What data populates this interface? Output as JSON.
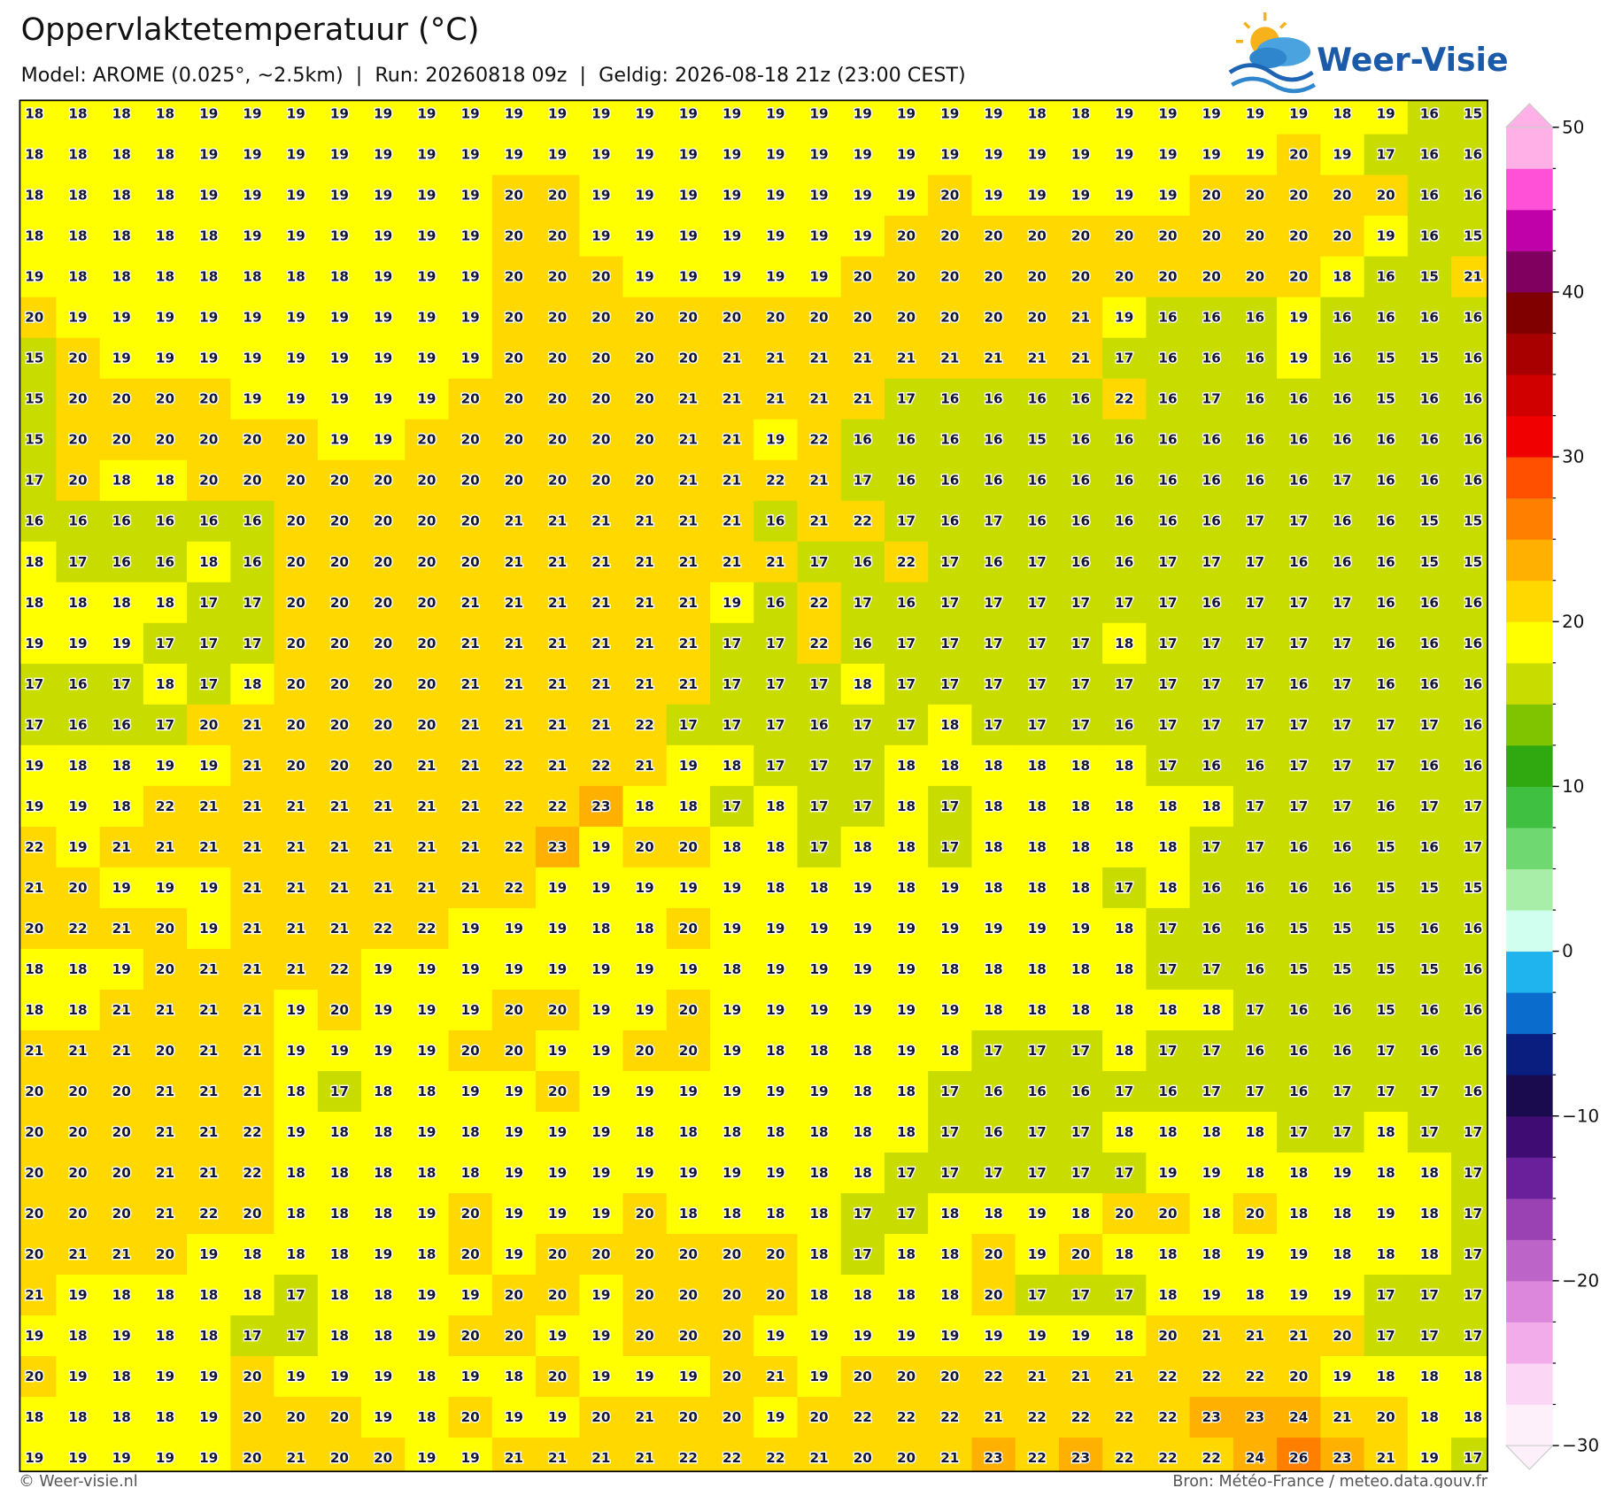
{
  "header": {
    "title": "Oppervlaktetemperatuur (°C)",
    "subtitle": "Model: AROME (0.025°, ~2.5km)  |  Run: 20260818 09z  |  Geldig: 2026-08-18 21z (23:00 CEST)",
    "logo": "Weer-Visie"
  },
  "map": {
    "values": [
      [
        18,
        18,
        18,
        18,
        19,
        19,
        19,
        19,
        19,
        19,
        19,
        19,
        19,
        19,
        19,
        19,
        19,
        19,
        19,
        19,
        19,
        19,
        19,
        18,
        18,
        19,
        19,
        19,
        19,
        19,
        18,
        19,
        16,
        15
      ],
      [
        18,
        18,
        18,
        18,
        19,
        19,
        19,
        19,
        19,
        19,
        19,
        19,
        19,
        19,
        19,
        19,
        19,
        19,
        19,
        19,
        19,
        19,
        19,
        19,
        19,
        19,
        19,
        19,
        19,
        20,
        19,
        17,
        16,
        16
      ],
      [
        18,
        18,
        18,
        18,
        19,
        19,
        19,
        19,
        19,
        19,
        19,
        20,
        20,
        19,
        19,
        19,
        19,
        19,
        19,
        19,
        19,
        20,
        19,
        19,
        19,
        19,
        19,
        20,
        20,
        20,
        20,
        20,
        16,
        16
      ],
      [
        18,
        18,
        18,
        18,
        18,
        19,
        19,
        19,
        19,
        19,
        19,
        20,
        20,
        19,
        19,
        19,
        19,
        19,
        19,
        19,
        20,
        20,
        20,
        20,
        20,
        20,
        20,
        20,
        20,
        20,
        20,
        19,
        16,
        15
      ],
      [
        19,
        18,
        18,
        18,
        18,
        18,
        18,
        18,
        19,
        19,
        19,
        20,
        20,
        20,
        19,
        19,
        19,
        19,
        19,
        20,
        20,
        20,
        20,
        20,
        20,
        20,
        20,
        20,
        20,
        20,
        18,
        16,
        15,
        21
      ],
      [
        20,
        19,
        19,
        19,
        19,
        19,
        19,
        19,
        19,
        19,
        19,
        20,
        20,
        20,
        20,
        20,
        20,
        20,
        20,
        20,
        20,
        20,
        20,
        20,
        21,
        19,
        16,
        16,
        16,
        19,
        16,
        16,
        16,
        16
      ],
      [
        15,
        20,
        19,
        19,
        19,
        19,
        19,
        19,
        19,
        19,
        19,
        20,
        20,
        20,
        20,
        20,
        21,
        21,
        21,
        21,
        21,
        21,
        21,
        21,
        21,
        17,
        16,
        16,
        16,
        19,
        16,
        15,
        15,
        16
      ],
      [
        15,
        20,
        20,
        20,
        20,
        19,
        19,
        19,
        19,
        19,
        20,
        20,
        20,
        20,
        20,
        21,
        21,
        21,
        21,
        21,
        17,
        16,
        16,
        16,
        16,
        22,
        16,
        17,
        16,
        16,
        16,
        15,
        16,
        16
      ],
      [
        15,
        20,
        20,
        20,
        20,
        20,
        20,
        19,
        19,
        20,
        20,
        20,
        20,
        20,
        20,
        21,
        21,
        19,
        22,
        16,
        16,
        16,
        16,
        15,
        16,
        16,
        16,
        16,
        16,
        16,
        16,
        16,
        16,
        16
      ],
      [
        17,
        20,
        18,
        18,
        20,
        20,
        20,
        20,
        20,
        20,
        20,
        20,
        20,
        20,
        20,
        21,
        21,
        22,
        21,
        17,
        16,
        16,
        16,
        16,
        16,
        16,
        16,
        16,
        16,
        16,
        17,
        16,
        16,
        16
      ],
      [
        16,
        16,
        16,
        16,
        16,
        16,
        20,
        20,
        20,
        20,
        20,
        21,
        21,
        21,
        21,
        21,
        21,
        16,
        21,
        22,
        17,
        16,
        17,
        16,
        16,
        16,
        16,
        16,
        17,
        17,
        16,
        16,
        15,
        15
      ],
      [
        18,
        17,
        16,
        16,
        18,
        16,
        20,
        20,
        20,
        20,
        20,
        21,
        21,
        21,
        21,
        21,
        21,
        21,
        17,
        16,
        22,
        17,
        16,
        17,
        16,
        16,
        17,
        17,
        17,
        16,
        16,
        16,
        15,
        15
      ],
      [
        18,
        18,
        18,
        18,
        17,
        17,
        20,
        20,
        20,
        20,
        21,
        21,
        21,
        21,
        21,
        21,
        19,
        16,
        22,
        17,
        16,
        17,
        17,
        17,
        17,
        17,
        17,
        16,
        17,
        17,
        17,
        16,
        16,
        16
      ],
      [
        19,
        19,
        19,
        17,
        17,
        17,
        20,
        20,
        20,
        20,
        21,
        21,
        21,
        21,
        21,
        21,
        17,
        17,
        22,
        16,
        17,
        17,
        17,
        17,
        17,
        18,
        17,
        17,
        17,
        17,
        17,
        16,
        16,
        16
      ],
      [
        17,
        16,
        17,
        18,
        17,
        18,
        20,
        20,
        20,
        20,
        21,
        21,
        21,
        21,
        21,
        21,
        17,
        17,
        17,
        18,
        17,
        17,
        17,
        17,
        17,
        17,
        17,
        17,
        17,
        16,
        17,
        16,
        16,
        16
      ],
      [
        17,
        16,
        16,
        17,
        20,
        21,
        20,
        20,
        20,
        20,
        21,
        21,
        21,
        21,
        22,
        17,
        17,
        17,
        16,
        17,
        17,
        18,
        17,
        17,
        17,
        16,
        17,
        17,
        17,
        17,
        17,
        17,
        17,
        16
      ],
      [
        19,
        18,
        18,
        19,
        19,
        21,
        20,
        20,
        20,
        21,
        21,
        22,
        21,
        22,
        21,
        19,
        18,
        17,
        17,
        17,
        18,
        18,
        18,
        18,
        18,
        18,
        17,
        16,
        16,
        17,
        17,
        17,
        16,
        16
      ],
      [
        19,
        19,
        18,
        22,
        21,
        21,
        21,
        21,
        21,
        21,
        21,
        22,
        22,
        23,
        18,
        18,
        17,
        18,
        17,
        17,
        18,
        17,
        18,
        18,
        18,
        18,
        18,
        18,
        17,
        17,
        17,
        16,
        17,
        17
      ],
      [
        22,
        19,
        21,
        21,
        21,
        21,
        21,
        21,
        21,
        21,
        21,
        22,
        23,
        19,
        20,
        20,
        18,
        18,
        17,
        18,
        18,
        17,
        18,
        18,
        18,
        18,
        18,
        17,
        17,
        16,
        16,
        15,
        16,
        17
      ],
      [
        21,
        20,
        19,
        19,
        19,
        21,
        21,
        21,
        21,
        21,
        21,
        22,
        19,
        19,
        19,
        19,
        19,
        18,
        18,
        19,
        18,
        19,
        18,
        18,
        18,
        17,
        18,
        16,
        16,
        16,
        16,
        15,
        15,
        15
      ],
      [
        20,
        22,
        21,
        20,
        19,
        21,
        21,
        21,
        22,
        22,
        19,
        19,
        19,
        18,
        18,
        20,
        19,
        19,
        19,
        19,
        19,
        19,
        19,
        19,
        19,
        18,
        17,
        16,
        16,
        15,
        15,
        15,
        16,
        16
      ],
      [
        18,
        18,
        19,
        20,
        21,
        21,
        21,
        22,
        19,
        19,
        19,
        19,
        19,
        19,
        19,
        19,
        18,
        19,
        19,
        19,
        19,
        18,
        18,
        18,
        18,
        18,
        17,
        17,
        16,
        15,
        15,
        15,
        15,
        16
      ],
      [
        18,
        18,
        21,
        21,
        21,
        21,
        19,
        20,
        19,
        19,
        19,
        20,
        20,
        19,
        19,
        20,
        19,
        19,
        19,
        19,
        19,
        19,
        18,
        18,
        18,
        18,
        18,
        18,
        17,
        16,
        16,
        15,
        16,
        16
      ],
      [
        21,
        21,
        21,
        20,
        21,
        21,
        19,
        19,
        19,
        19,
        20,
        20,
        19,
        19,
        20,
        20,
        19,
        18,
        18,
        18,
        19,
        18,
        17,
        17,
        17,
        18,
        17,
        17,
        16,
        16,
        16,
        17,
        16,
        16
      ],
      [
        20,
        20,
        20,
        21,
        21,
        21,
        18,
        17,
        18,
        18,
        19,
        19,
        20,
        19,
        19,
        19,
        19,
        19,
        19,
        18,
        18,
        17,
        16,
        16,
        16,
        17,
        16,
        17,
        17,
        16,
        17,
        17,
        17,
        16
      ],
      [
        20,
        20,
        20,
        21,
        21,
        22,
        19,
        18,
        18,
        19,
        18,
        19,
        19,
        19,
        18,
        18,
        18,
        18,
        18,
        18,
        18,
        17,
        16,
        17,
        17,
        18,
        18,
        18,
        18,
        17,
        17,
        18,
        17,
        17
      ],
      [
        20,
        20,
        20,
        21,
        21,
        22,
        18,
        18,
        18,
        18,
        18,
        19,
        19,
        19,
        19,
        19,
        19,
        19,
        18,
        18,
        17,
        17,
        17,
        17,
        17,
        17,
        19,
        19,
        18,
        18,
        19,
        18,
        18,
        17
      ],
      [
        20,
        20,
        20,
        21,
        22,
        20,
        18,
        18,
        18,
        19,
        20,
        19,
        19,
        19,
        20,
        18,
        18,
        18,
        18,
        17,
        17,
        18,
        18,
        19,
        18,
        20,
        20,
        18,
        20,
        18,
        18,
        19,
        18,
        17
      ],
      [
        20,
        21,
        21,
        20,
        19,
        18,
        18,
        18,
        19,
        18,
        20,
        19,
        20,
        20,
        20,
        20,
        20,
        20,
        18,
        17,
        18,
        18,
        20,
        19,
        20,
        18,
        18,
        18,
        19,
        19,
        18,
        18,
        18,
        17
      ],
      [
        21,
        19,
        18,
        18,
        18,
        18,
        17,
        18,
        18,
        19,
        19,
        20,
        20,
        19,
        20,
        20,
        20,
        20,
        18,
        18,
        18,
        18,
        20,
        17,
        17,
        17,
        18,
        19,
        18,
        19,
        19,
        17,
        17,
        17
      ],
      [
        19,
        18,
        19,
        18,
        18,
        17,
        17,
        18,
        18,
        19,
        20,
        20,
        19,
        19,
        20,
        20,
        20,
        19,
        19,
        19,
        19,
        19,
        19,
        19,
        19,
        18,
        20,
        21,
        21,
        21,
        20,
        17,
        17,
        17
      ],
      [
        20,
        19,
        18,
        19,
        19,
        20,
        19,
        19,
        19,
        18,
        19,
        18,
        20,
        19,
        19,
        19,
        20,
        21,
        19,
        20,
        20,
        20,
        22,
        21,
        21,
        21,
        22,
        22,
        22,
        20,
        19,
        18,
        18,
        18
      ],
      [
        18,
        18,
        18,
        18,
        19,
        20,
        20,
        20,
        19,
        18,
        20,
        19,
        19,
        20,
        21,
        20,
        20,
        19,
        20,
        22,
        22,
        22,
        21,
        22,
        22,
        22,
        22,
        23,
        23,
        24,
        21,
        20,
        18,
        18
      ],
      [
        19,
        19,
        19,
        19,
        19,
        20,
        21,
        20,
        20,
        19,
        19,
        21,
        21,
        21,
        21,
        22,
        22,
        22,
        21,
        20,
        20,
        21,
        23,
        22,
        23,
        22,
        22,
        22,
        24,
        26,
        23,
        21,
        19,
        17
      ]
    ]
  },
  "colorbar": {
    "lim": [
      -30,
      50
    ],
    "ticks": [
      50,
      40,
      30,
      20,
      10,
      0,
      {
        "value": -10,
        "label": "−10"
      },
      {
        "value": -20,
        "label": "−20"
      },
      {
        "value": -30,
        "label": "−30"
      }
    ],
    "colors": [
      "#fef0fb",
      "#fcd6f5",
      "#f3acea",
      "#dc86dc",
      "#bc64c8",
      "#9a42b4",
      "#6a209a",
      "#3e0c72",
      "#1a0a4e",
      "#0a1e80",
      "#0a6ccc",
      "#20b4ee",
      "#d0fff0",
      "#a8eea8",
      "#70d870",
      "#40c040",
      "#30a810",
      "#80c400",
      "#c8dc00",
      "#ffff00",
      "#ffd800",
      "#ffb000",
      "#ff8000",
      "#ff5000",
      "#f00000",
      "#d00000",
      "#a80000",
      "#800000",
      "#800060",
      "#c000a8",
      "#ff50d8",
      "#ffb0e6"
    ]
  },
  "footer": {
    "left": "© Weer-visie.nl",
    "right": "Bron: Météo-France / meteo.data.gouv.fr"
  }
}
